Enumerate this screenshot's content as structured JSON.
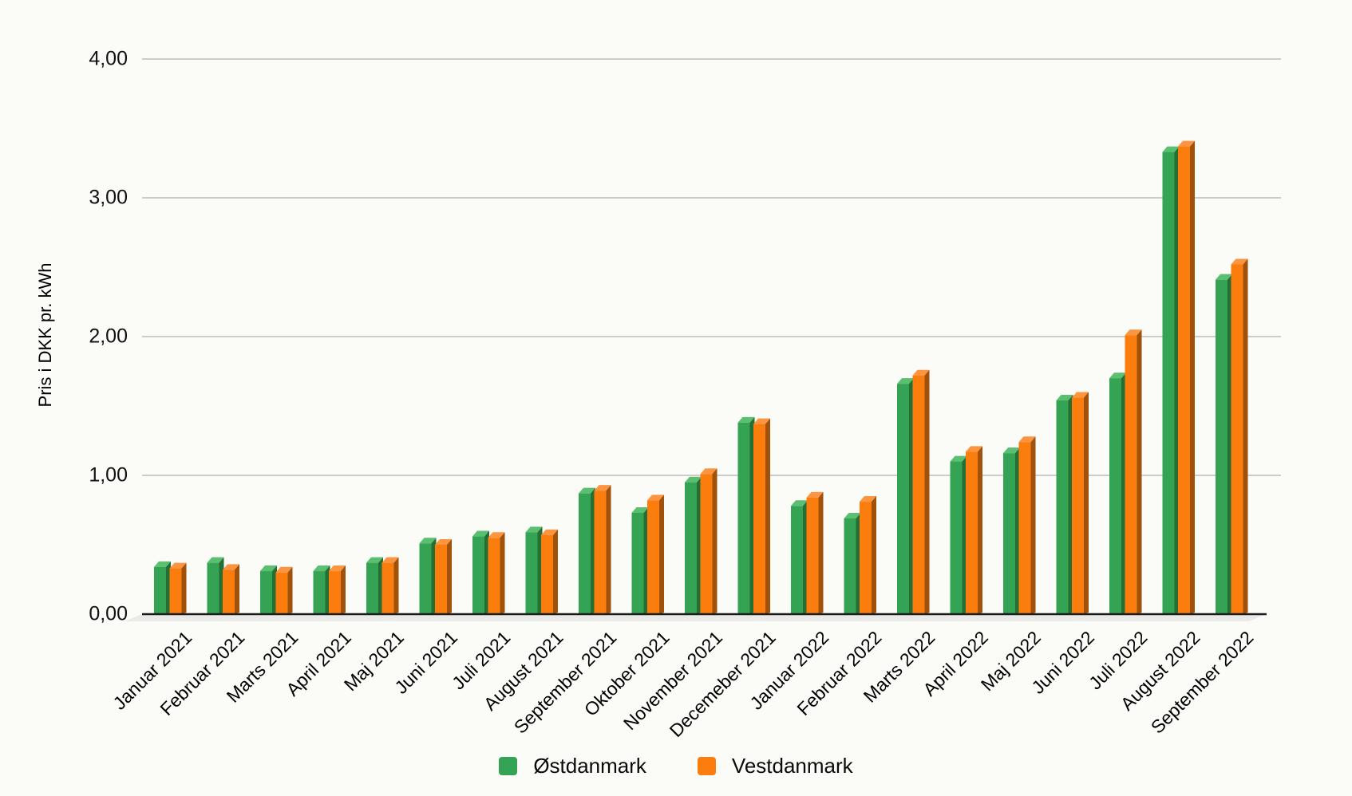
{
  "chart_data": {
    "type": "bar",
    "style": "3d-column",
    "title": "",
    "xlabel": "",
    "ylabel": "Pris i DKK pr. kWh",
    "ylim": [
      0,
      4
    ],
    "yticks": [
      {
        "value": 0,
        "label": "0,00"
      },
      {
        "value": 1,
        "label": "1,00"
      },
      {
        "value": 2,
        "label": "2,00"
      },
      {
        "value": 3,
        "label": "3,00"
      },
      {
        "value": 4,
        "label": "4,00"
      }
    ],
    "grid": true,
    "legend_position": "bottom",
    "categories": [
      "Januar 2021",
      "Februar 2021",
      "Marts 2021",
      "April 2021",
      "Maj 2021",
      "Juni 2021",
      "Juli 2021",
      "August 2021",
      "September 2021",
      "Oktober 2021",
      "November 2021",
      "Decemeber 2021",
      "Januar 2022",
      "Februar 2022",
      "Marts 2022",
      "April 2022",
      "Maj 2022",
      "Juni 2022",
      "Juli 2022",
      "August 2022",
      "September 2022"
    ],
    "series": [
      {
        "name": "Østdanmark",
        "color": "#34a353",
        "color_side": "#256f35",
        "color_top": "#5abf70",
        "values": [
          0.34,
          0.37,
          0.31,
          0.31,
          0.37,
          0.51,
          0.56,
          0.59,
          0.87,
          0.73,
          0.95,
          1.38,
          0.78,
          0.69,
          1.66,
          1.1,
          1.16,
          1.54,
          1.7,
          3.33,
          2.41
        ]
      },
      {
        "name": "Vestdanmark",
        "color": "#fb7d0e",
        "color_side": "#a0520c",
        "color_top": "#fc9440",
        "values": [
          0.33,
          0.32,
          0.3,
          0.31,
          0.37,
          0.5,
          0.55,
          0.57,
          0.89,
          0.82,
          1.01,
          1.37,
          0.84,
          0.81,
          1.72,
          1.17,
          1.24,
          1.56,
          2.01,
          3.37,
          2.52
        ]
      }
    ]
  },
  "colors": {
    "background": "#fbfbf8",
    "gridline": "#cccccc",
    "axis_line": "#1c1c1c",
    "floor_shadow": "#eaeae8",
    "text": "#111111"
  }
}
